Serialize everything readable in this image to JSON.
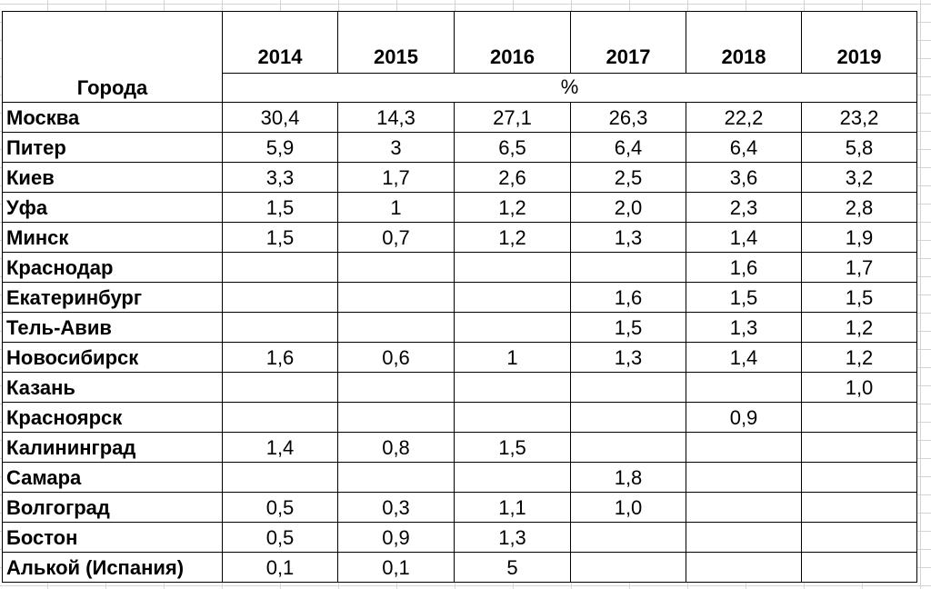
{
  "table": {
    "header": {
      "city_label": "Города",
      "unit_label": "%",
      "years": [
        "2014",
        "2015",
        "2016",
        "2017",
        "2018",
        "2019"
      ]
    },
    "rows": [
      {
        "city": "Москва",
        "values": [
          "30,4",
          "14,3",
          "27,1",
          "26,3",
          "22,2",
          "23,2"
        ]
      },
      {
        "city": "Питер",
        "values": [
          "5,9",
          "3",
          "6,5",
          "6,4",
          "6,4",
          "5,8"
        ]
      },
      {
        "city": "Киев",
        "values": [
          "3,3",
          "1,7",
          "2,6",
          "2,5",
          "3,6",
          "3,2"
        ]
      },
      {
        "city": "Уфа",
        "values": [
          "1,5",
          "1",
          "1,2",
          "2,0",
          "2,3",
          "2,8"
        ]
      },
      {
        "city": "Минск",
        "values": [
          "1,5",
          "0,7",
          "1,2",
          "1,3",
          "1,4",
          "1,9"
        ]
      },
      {
        "city": "Краснодар",
        "values": [
          "",
          "",
          "",
          "",
          "1,6",
          "1,7"
        ]
      },
      {
        "city": "Екатеринбург",
        "values": [
          "",
          "",
          "",
          "1,6",
          "1,5",
          "1,5"
        ]
      },
      {
        "city": "Тель-Авив",
        "values": [
          "",
          "",
          "",
          "1,5",
          "1,3",
          "1,2"
        ]
      },
      {
        "city": "Новосибирск",
        "values": [
          "1,6",
          "0,6",
          "1",
          "1,3",
          "1,4",
          "1,2"
        ]
      },
      {
        "city": "Казань",
        "values": [
          "",
          "",
          "",
          "",
          "",
          "1,0"
        ]
      },
      {
        "city": "Красноярск",
        "values": [
          "",
          "",
          "",
          "",
          "0,9",
          ""
        ]
      },
      {
        "city": "Калининград",
        "values": [
          "1,4",
          "0,8",
          "1,5",
          "",
          "",
          ""
        ]
      },
      {
        "city": "Самара",
        "values": [
          "",
          "",
          "",
          "1,8",
          "",
          ""
        ]
      },
      {
        "city": "Волгоград",
        "values": [
          "0,5",
          "0,3",
          "1,1",
          "1,0",
          "",
          ""
        ]
      },
      {
        "city": "Бостон",
        "values": [
          "0,5",
          "0,9",
          "1,3",
          "",
          "",
          ""
        ]
      },
      {
        "city": "Алькой (Испания)",
        "values": [
          "0,1",
          "0,1",
          "5",
          "",
          "",
          ""
        ]
      }
    ]
  }
}
